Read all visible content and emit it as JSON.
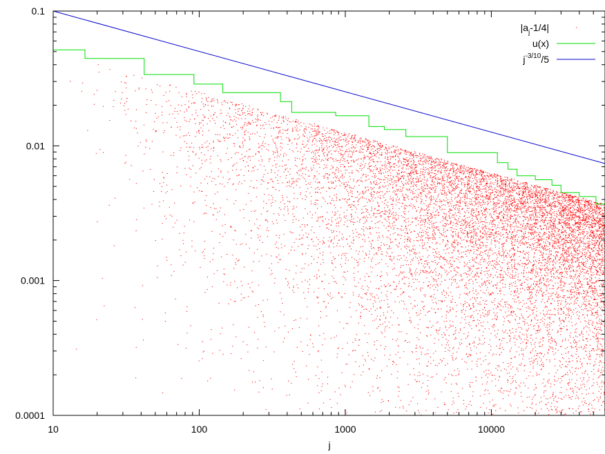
{
  "chart_data": {
    "type": "scatter",
    "xlabel": "j",
    "ylabel": "",
    "x_scale": "log",
    "y_scale": "log",
    "xlim": [
      10,
      60000
    ],
    "ylim": [
      0.0001,
      0.1
    ],
    "x_ticks": [
      {
        "value": 10,
        "label": "10"
      },
      {
        "value": 100,
        "label": "100"
      },
      {
        "value": 1000,
        "label": "1000"
      },
      {
        "value": 10000,
        "label": "10000"
      }
    ],
    "y_ticks": [
      {
        "value": 0.0001,
        "label": "0.0001"
      },
      {
        "value": 0.001,
        "label": "0.001"
      },
      {
        "value": 0.01,
        "label": "0.01"
      },
      {
        "value": 0.1,
        "label": "0.1"
      }
    ],
    "grid": false,
    "legend_position": "top-right",
    "series": [
      {
        "name_base": "|a",
        "name_sub": "j",
        "name_rest": "-1/4|",
        "kind": "points",
        "color": "#ff0000",
        "description_points_count": 12000
      },
      {
        "name_base": "u(x)",
        "kind": "step",
        "color": "#00dd00",
        "steps": [
          [
            10,
            0.0515
          ],
          [
            16.5,
            0.0515
          ],
          [
            16.5,
            0.0445
          ],
          [
            42,
            0.0445
          ],
          [
            42,
            0.0338
          ],
          [
            92,
            0.0338
          ],
          [
            92,
            0.0287
          ],
          [
            145,
            0.0287
          ],
          [
            145,
            0.0248
          ],
          [
            360,
            0.0248
          ],
          [
            360,
            0.0213
          ],
          [
            430,
            0.0213
          ],
          [
            430,
            0.0177
          ],
          [
            860,
            0.0177
          ],
          [
            860,
            0.0167
          ],
          [
            1450,
            0.0167
          ],
          [
            1450,
            0.0139
          ],
          [
            1850,
            0.0139
          ],
          [
            1850,
            0.0132
          ],
          [
            2600,
            0.0132
          ],
          [
            2600,
            0.0117
          ],
          [
            5000,
            0.0117
          ],
          [
            5000,
            0.0089
          ],
          [
            11000,
            0.0089
          ],
          [
            11000,
            0.0075
          ],
          [
            13000,
            0.0075
          ],
          [
            13000,
            0.0067
          ],
          [
            15000,
            0.0067
          ],
          [
            15000,
            0.006
          ],
          [
            20000,
            0.006
          ],
          [
            20000,
            0.0056
          ],
          [
            26000,
            0.0056
          ],
          [
            26000,
            0.0051
          ],
          [
            30000,
            0.0051
          ],
          [
            30000,
            0.0045
          ],
          [
            40000,
            0.0045
          ],
          [
            40000,
            0.0042
          ],
          [
            52000,
            0.0042
          ],
          [
            52000,
            0.0037
          ],
          [
            60000,
            0.0037
          ]
        ]
      },
      {
        "name_base": "j",
        "name_sup": "-3/10",
        "name_rest": "/5",
        "kind": "line",
        "color": "#0000cc",
        "points": [
          [
            10,
            0.1
          ],
          [
            60000,
            0.00739
          ]
        ]
      }
    ]
  }
}
